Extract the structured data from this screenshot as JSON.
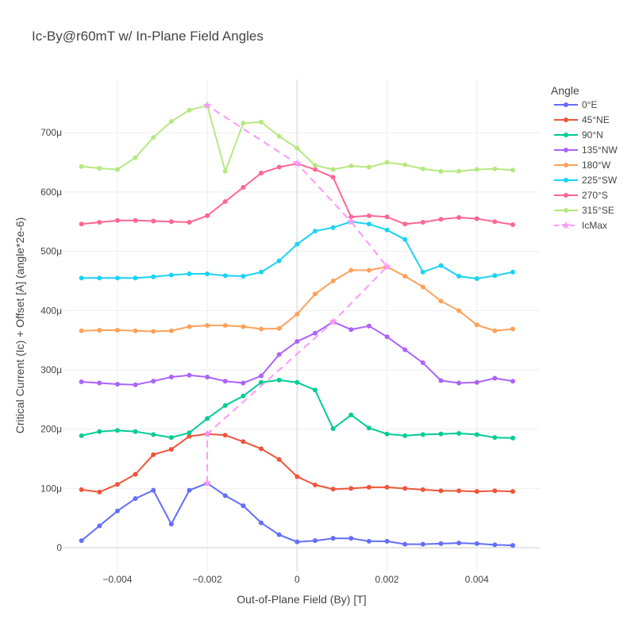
{
  "chart_data": {
    "type": "line",
    "title": "Ic-By@r60mT w/ In-Plane Field Angles",
    "xlabel": "Out-of-Plane Field (By) [T]",
    "ylabel": "Critical Current (Ic) + Offset [A] (angle*2e-6)",
    "xlim": [
      -0.0052,
      0.0054
    ],
    "ylim": [
      -4e-05,
      0.00079
    ],
    "xticks": [
      -0.004,
      -0.002,
      0,
      0.002,
      0.004
    ],
    "xtick_labels": [
      "−0.004",
      "−0.002",
      "0",
      "0.002",
      "0.004"
    ],
    "yticks": [
      0,
      0.0001,
      0.0002,
      0.0003,
      0.0004,
      0.0005,
      0.0006,
      0.0007
    ],
    "ytick_labels": [
      "0",
      "100μ",
      "200μ",
      "300μ",
      "400μ",
      "500μ",
      "600μ",
      "700μ"
    ],
    "grid": true,
    "legend_title": "Angle",
    "legend_position": "right",
    "x": [
      -0.0048,
      -0.0044,
      -0.004,
      -0.0036,
      -0.0032,
      -0.0028,
      -0.0024,
      -0.002,
      -0.0016,
      -0.0012,
      -0.0008,
      -0.0004,
      0,
      0.0004,
      0.0008,
      0.0012,
      0.0016,
      0.002,
      0.0024,
      0.0028,
      0.0032,
      0.0036,
      0.004,
      0.0044,
      0.0048
    ],
    "series": [
      {
        "name": "0°E",
        "color": "#636efa",
        "marker": "circle",
        "y": [
          1.2e-05,
          3.7e-05,
          6.2e-05,
          8.3e-05,
          9.7e-05,
          4e-05,
          9.7e-05,
          0.000109,
          8.8e-05,
          7.1e-05,
          4.2e-05,
          2.2e-05,
          1e-05,
          1.2e-05,
          1.6e-05,
          1.6e-05,
          1.1e-05,
          1.1e-05,
          6e-06,
          6e-06,
          7e-06,
          8e-06,
          7e-06,
          5e-06,
          4e-06
        ]
      },
      {
        "name": "45°NE",
        "color": "#ef553b",
        "marker": "circle",
        "y": [
          9.8e-05,
          9.4e-05,
          0.000107,
          0.000124,
          0.000157,
          0.000166,
          0.000188,
          0.000192,
          0.00019,
          0.000179,
          0.000167,
          0.000149,
          0.00012,
          0.000106,
          9.9e-05,
          0.0001,
          0.000102,
          0.000102,
          0.0001,
          9.8e-05,
          9.6e-05,
          9.6e-05,
          9.5e-05,
          9.6e-05,
          9.5e-05
        ]
      },
      {
        "name": "90°N",
        "color": "#00cc96",
        "marker": "circle",
        "y": [
          0.000189,
          0.000196,
          0.000198,
          0.000196,
          0.000191,
          0.000186,
          0.000194,
          0.000218,
          0.00024,
          0.000256,
          0.000279,
          0.000283,
          0.000279,
          0.000266,
          0.000201,
          0.000224,
          0.000202,
          0.000192,
          0.000189,
          0.000191,
          0.000192,
          0.000193,
          0.000191,
          0.000186,
          0.000185
        ]
      },
      {
        "name": "135°NW",
        "color": "#ab63fa",
        "marker": "circle",
        "y": [
          0.00028,
          0.000278,
          0.000276,
          0.000275,
          0.000281,
          0.000288,
          0.000291,
          0.000288,
          0.000281,
          0.000278,
          0.00029,
          0.000326,
          0.000348,
          0.000362,
          0.000381,
          0.000368,
          0.000374,
          0.000356,
          0.000334,
          0.000312,
          0.000282,
          0.000278,
          0.000279,
          0.000286,
          0.000281
        ]
      },
      {
        "name": "180°W",
        "color": "#ffa15a",
        "marker": "circle",
        "y": [
          0.000366,
          0.000367,
          0.000367,
          0.000366,
          0.000365,
          0.000366,
          0.000373,
          0.000375,
          0.000375,
          0.000373,
          0.000369,
          0.00037,
          0.000394,
          0.000428,
          0.00045,
          0.000468,
          0.000468,
          0.000474,
          0.000458,
          0.00044,
          0.000416,
          0.0004,
          0.000376,
          0.000366,
          0.000369
        ]
      },
      {
        "name": "225°SW",
        "color": "#19d3f3",
        "marker": "circle",
        "y": [
          0.000455,
          0.000455,
          0.000455,
          0.000455,
          0.000457,
          0.00046,
          0.000462,
          0.000462,
          0.000459,
          0.000458,
          0.000465,
          0.000484,
          0.000512,
          0.000534,
          0.00054,
          0.00055,
          0.000546,
          0.000536,
          0.00052,
          0.000465,
          0.000476,
          0.000458,
          0.000454,
          0.000459,
          0.000465
        ]
      },
      {
        "name": "270°S",
        "color": "#ff6692",
        "marker": "circle",
        "y": [
          0.000546,
          0.000549,
          0.000552,
          0.000552,
          0.000551,
          0.00055,
          0.000549,
          0.00056,
          0.000584,
          0.000608,
          0.000632,
          0.000642,
          0.000648,
          0.000638,
          0.000625,
          0.000558,
          0.00056,
          0.000558,
          0.000546,
          0.000549,
          0.000554,
          0.000557,
          0.000555,
          0.00055,
          0.000545
        ]
      },
      {
        "name": "315°SE",
        "color": "#b6e880",
        "marker": "circle",
        "y": [
          0.000643,
          0.00064,
          0.000638,
          0.000658,
          0.000692,
          0.000719,
          0.000738,
          0.000746,
          0.000635,
          0.000716,
          0.000718,
          0.000694,
          0.000674,
          0.000645,
          0.000638,
          0.000644,
          0.000642,
          0.00065,
          0.000646,
          0.000639,
          0.000635,
          0.000635,
          0.000638,
          0.000639,
          0.000637
        ]
      },
      {
        "name": "IcMax",
        "color": "#ff97ff",
        "marker": "star",
        "dash": "dash",
        "x": [
          -0.002,
          -0.002,
          0.0008,
          0.002,
          0.0012,
          0.0,
          -0.002
        ],
        "y": [
          0.000109,
          0.000192,
          0.000381,
          0.000474,
          0.00055,
          0.000648,
          0.000746
        ]
      }
    ]
  }
}
